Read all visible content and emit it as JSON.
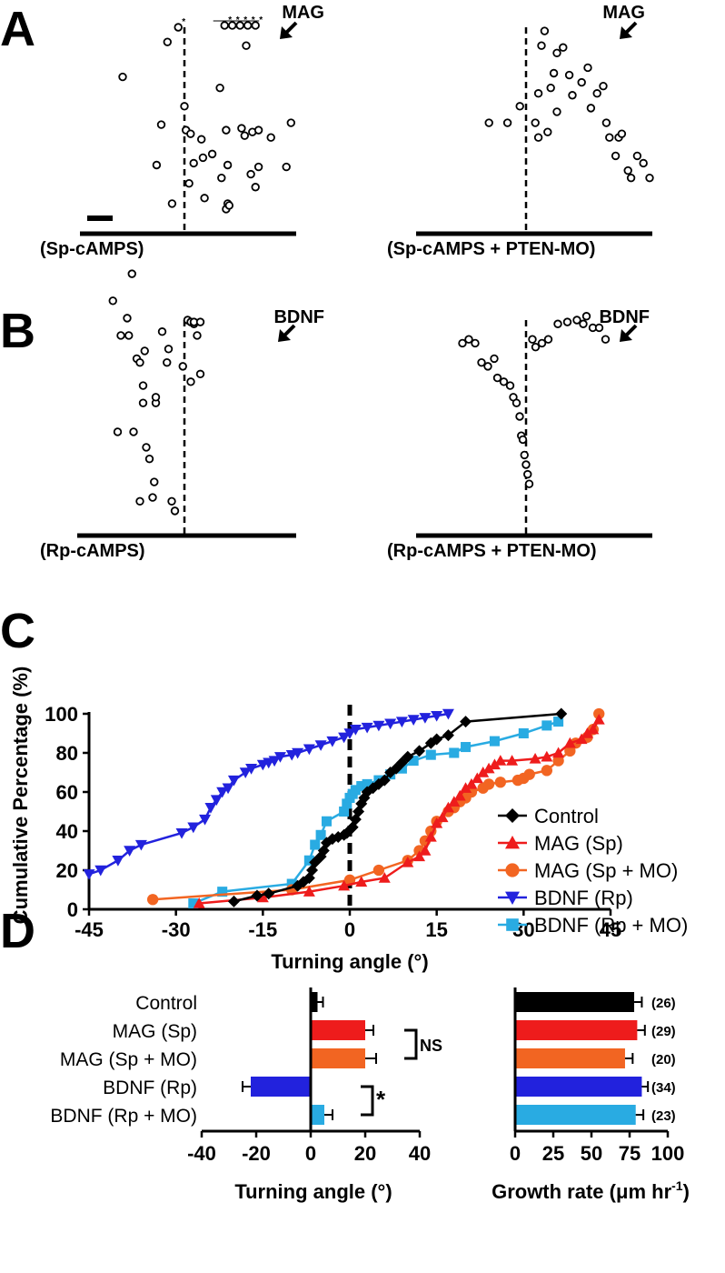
{
  "panel_letters": [
    "A",
    "B",
    "C",
    "D"
  ],
  "colors": {
    "control": "#000000",
    "mag_sp": "#ee1c1c",
    "mag_sp_mo": "#f26522",
    "bdnf_rp": "#2222dd",
    "bdnf_rp_mo": "#29abe2"
  },
  "chart_data": [
    {
      "id": "A-left",
      "type": "scatter",
      "panel": "A",
      "condition_label": "(Sp-cAMPS)",
      "cue_label": "MAG",
      "arrow_icon": "arrow-down-left-icon",
      "star_marker": "*",
      "points": [
        [
          -40,
          73
        ],
        [
          -11,
          92
        ],
        [
          -18,
          25
        ],
        [
          -15,
          47
        ],
        [
          -8,
          4
        ],
        [
          0,
          57
        ],
        [
          1,
          44
        ],
        [
          4,
          42
        ],
        [
          3,
          15
        ],
        [
          6,
          26
        ],
        [
          11,
          39
        ],
        [
          12,
          29
        ],
        [
          13,
          7
        ],
        [
          18,
          31
        ],
        [
          23,
          67
        ],
        [
          24,
          18
        ],
        [
          27,
          1
        ],
        [
          27,
          44
        ],
        [
          28,
          25
        ],
        [
          28,
          4
        ],
        [
          29,
          3
        ],
        [
          37,
          45
        ],
        [
          39,
          41
        ],
        [
          40,
          90
        ],
        [
          43,
          20
        ],
        [
          44,
          43
        ],
        [
          46,
          13
        ],
        [
          48,
          44
        ],
        [
          48,
          24
        ],
        [
          56,
          40
        ],
        [
          66,
          24
        ],
        [
          69,
          48
        ]
      ],
      "starred_points": [
        [
          -4,
          100
        ],
        [
          26,
          101
        ],
        [
          31,
          101
        ],
        [
          36,
          101
        ],
        [
          41,
          101
        ],
        [
          46,
          101
        ]
      ],
      "bracket_group": [
        [
          21,
          101
        ],
        [
          26,
          101
        ],
        [
          31,
          101
        ],
        [
          36,
          101
        ],
        [
          41,
          101
        ],
        [
          46,
          101
        ]
      ]
    },
    {
      "id": "A-right",
      "type": "scatter",
      "panel": "A",
      "condition_label": "(Sp-cAMPS + PTEN-MO)",
      "cue_label": "MAG",
      "arrow_icon": "arrow-down-left-icon",
      "points": [
        [
          -24,
          48
        ],
        [
          -12,
          48
        ],
        [
          -4,
          57
        ],
        [
          6,
          48
        ],
        [
          8,
          40
        ],
        [
          8,
          64
        ],
        [
          10,
          90
        ],
        [
          12,
          98
        ],
        [
          14,
          43
        ],
        [
          16,
          67
        ],
        [
          18,
          75
        ],
        [
          20,
          54
        ],
        [
          20,
          86
        ],
        [
          24,
          89
        ],
        [
          28,
          74
        ],
        [
          30,
          63
        ],
        [
          36,
          70
        ],
        [
          40,
          78
        ],
        [
          42,
          56
        ],
        [
          46,
          64
        ],
        [
          50,
          68
        ],
        [
          52,
          48
        ],
        [
          54,
          40
        ],
        [
          58,
          30
        ],
        [
          60,
          40
        ],
        [
          62,
          42
        ],
        [
          66,
          22
        ],
        [
          68,
          18
        ],
        [
          72,
          30
        ],
        [
          76,
          26
        ],
        [
          80,
          18
        ]
      ]
    },
    {
      "id": "B-left",
      "type": "scatter",
      "panel": "B",
      "condition_label": "(Rp-cAMPS)",
      "cue_label": "BDNF",
      "arrow_icon": "arrow-down-left-icon",
      "star_marker": "*",
      "points": [
        [
          -45,
          110
        ],
        [
          -42,
          42
        ],
        [
          -40,
          92
        ],
        [
          -36,
          101
        ],
        [
          -35,
          92
        ],
        [
          -33,
          124
        ],
        [
          -32,
          42
        ],
        [
          -30,
          80
        ],
        [
          -28,
          6
        ],
        [
          -28,
          78
        ],
        [
          -26,
          57
        ],
        [
          -26,
          66
        ],
        [
          -25,
          84
        ],
        [
          -24,
          34
        ],
        [
          -22,
          28
        ],
        [
          -20,
          8
        ],
        [
          -19,
          16
        ],
        [
          -18,
          57
        ],
        [
          -18,
          60
        ],
        [
          -14,
          94
        ],
        [
          -11,
          78
        ],
        [
          -10,
          85
        ],
        [
          -8,
          6
        ],
        [
          -6,
          1
        ],
        [
          -1,
          76
        ],
        [
          2,
          100
        ],
        [
          4,
          68
        ],
        [
          4,
          99
        ],
        [
          6,
          98
        ],
        [
          6,
          99
        ],
        [
          8,
          92
        ],
        [
          10,
          99
        ],
        [
          10,
          72
        ]
      ]
    },
    {
      "id": "B-right",
      "type": "scatter",
      "panel": "B",
      "condition_label": "(Rp-cAMPS + PTEN-MO)",
      "cue_label": "BDNF",
      "arrow_icon": "arrow-down-left-icon",
      "star_marker": "*",
      "points": [
        [
          -40,
          88
        ],
        [
          -36,
          90
        ],
        [
          -32,
          88
        ],
        [
          -28,
          78
        ],
        [
          -24,
          76
        ],
        [
          -20,
          80
        ],
        [
          -18,
          70
        ],
        [
          -14,
          68
        ],
        [
          -10,
          66
        ],
        [
          -8,
          60
        ],
        [
          -6,
          57
        ],
        [
          -4,
          50
        ],
        [
          -3,
          40
        ],
        [
          -2,
          38
        ],
        [
          -1,
          30
        ],
        [
          0,
          25
        ],
        [
          1,
          20
        ],
        [
          2,
          15
        ],
        [
          4,
          90
        ],
        [
          6,
          86
        ],
        [
          10,
          88
        ],
        [
          14,
          90
        ],
        [
          20,
          98
        ],
        [
          26,
          99
        ],
        [
          32,
          100
        ],
        [
          36,
          98
        ],
        [
          38,
          102
        ],
        [
          42,
          96
        ],
        [
          46,
          96
        ],
        [
          50,
          90
        ]
      ]
    },
    {
      "id": "C",
      "type": "line",
      "panel": "C",
      "ylabel": "Cumulative Percentage (%)",
      "xlabel": "Turning angle (°)",
      "xlim": [
        -45,
        45
      ],
      "ylim": [
        0,
        100
      ],
      "xticks": [
        -45,
        -30,
        -15,
        0,
        15,
        30,
        45
      ],
      "yticks": [
        0,
        20,
        40,
        60,
        80,
        100
      ],
      "series": [
        {
          "name": "Control",
          "color": "#000000",
          "marker": "diamond",
          "x": [
            -20,
            -16,
            -14,
            -9,
            -8,
            -7,
            -6.5,
            -6,
            -5,
            -4.5,
            -4,
            -3,
            -2,
            -1,
            -0.5,
            0.5,
            1,
            1.5,
            2,
            2.5,
            3,
            4,
            5,
            6,
            7,
            8,
            9,
            10,
            12,
            14,
            15,
            17,
            20,
            36.5
          ],
          "y": [
            4,
            7,
            8,
            12,
            14,
            16,
            20,
            24,
            27,
            30,
            34,
            36,
            37,
            38,
            39,
            42,
            46,
            50,
            54,
            57,
            60,
            62,
            64,
            66,
            70,
            72,
            75,
            78,
            81,
            85,
            87,
            89,
            96,
            100
          ]
        },
        {
          "name": "MAG (Sp)",
          "color": "#ee1c1c",
          "marker": "triangle-up",
          "x": [
            -26,
            -15,
            -7,
            -1,
            2,
            6,
            10,
            12,
            13,
            14,
            15,
            16,
            17,
            18,
            19,
            20,
            21,
            22,
            23,
            24,
            25,
            26,
            28,
            32,
            34,
            36,
            38,
            40,
            41,
            42,
            43
          ],
          "y": [
            3,
            6,
            9,
            12,
            14,
            16,
            24,
            27,
            30,
            37,
            44,
            47,
            52,
            55,
            58,
            62,
            64,
            67,
            70,
            72,
            74,
            76,
            76,
            77,
            78,
            80,
            85,
            87,
            90,
            92,
            97
          ]
        },
        {
          "name": "MAG (Sp + MO)",
          "color": "#f26522",
          "marker": "circle",
          "x": [
            -34,
            -10,
            0,
            5,
            10,
            12,
            13,
            14,
            15,
            17,
            18,
            19,
            20,
            21,
            23,
            24,
            26,
            29,
            30,
            31,
            34,
            36,
            38,
            39,
            41,
            42,
            43
          ],
          "y": [
            5,
            10,
            15,
            20,
            25,
            30,
            35,
            40,
            45,
            50,
            52,
            55,
            57,
            60,
            62,
            64,
            65,
            66,
            67,
            69,
            71,
            76,
            81,
            85,
            88,
            92,
            100
          ]
        },
        {
          "name": "BDNF (Rp)",
          "color": "#2222dd",
          "marker": "triangle-down",
          "x": [
            -45,
            -43,
            -40,
            -38,
            -36,
            -29,
            -27,
            -25,
            -24,
            -23,
            -22,
            -21,
            -20,
            -18,
            -17,
            -15,
            -14,
            -13,
            -12,
            -10,
            -9,
            -7,
            -5,
            -3,
            -1,
            0,
            1,
            3,
            5,
            7,
            9,
            11,
            13,
            15,
            17
          ],
          "y": [
            18,
            20,
            25,
            30,
            33,
            39,
            42,
            46,
            52,
            56,
            60,
            62,
            66,
            70,
            72,
            74,
            75,
            76,
            78,
            79,
            80,
            82,
            84,
            86,
            88,
            90,
            92,
            93,
            94,
            95,
            96,
            97,
            98,
            99,
            100
          ]
        },
        {
          "name": "BDNF (Rp + MO)",
          "color": "#29abe2",
          "marker": "square",
          "x": [
            -27,
            -22,
            -10,
            -7,
            -6,
            -5,
            -4,
            -1,
            -0.5,
            0,
            0.5,
            1,
            2,
            3,
            5,
            7,
            9,
            11,
            14,
            18,
            20,
            25,
            30,
            34,
            36
          ],
          "y": [
            3,
            9,
            13,
            25,
            33,
            38,
            45,
            50,
            54,
            57,
            59,
            61,
            63,
            64,
            66,
            69,
            72,
            76,
            79,
            80,
            83,
            86,
            90,
            94,
            96
          ]
        }
      ],
      "legend_position": "right"
    },
    {
      "id": "D-left",
      "type": "bar",
      "panel": "D",
      "orientation": "horizontal",
      "categories": [
        "Control",
        "MAG (Sp)",
        "MAG (Sp + MO)",
        "BDNF (Rp)",
        "BDNF (Rp + MO)"
      ],
      "values": [
        2.5,
        20,
        20,
        -22,
        5
      ],
      "errors": [
        2,
        3,
        4,
        3,
        3
      ],
      "colors": [
        "#000000",
        "#ee1c1c",
        "#f26522",
        "#2222dd",
        "#29abe2"
      ],
      "xlabel": "Turning angle (°)",
      "xlim": [
        -40,
        40
      ],
      "xticks": [
        -40,
        -20,
        0,
        20,
        40
      ],
      "annotations": [
        {
          "text": "NS",
          "between": [
            "MAG (Sp)",
            "MAG (Sp + MO)"
          ]
        },
        {
          "text": "*",
          "between": [
            "BDNF (Rp)",
            "BDNF (Rp + MO)"
          ]
        }
      ]
    },
    {
      "id": "D-right",
      "type": "bar",
      "panel": "D",
      "orientation": "horizontal",
      "categories": [
        "Control",
        "MAG (Sp)",
        "MAG (Sp + MO)",
        "BDNF (Rp)",
        "BDNF (Rp + MO)"
      ],
      "values": [
        78,
        80,
        72,
        83,
        79
      ],
      "errors": [
        5,
        5,
        5,
        4,
        5
      ],
      "n_labels": [
        "(26)",
        "(29)",
        "(20)",
        "(34)",
        "(23)"
      ],
      "colors": [
        "#000000",
        "#ee1c1c",
        "#f26522",
        "#2222dd",
        "#29abe2"
      ],
      "xlabel_main": "Growth rate (",
      "xlabel_mu": "μ",
      "xlabel_unit": "m hr",
      "xlabel_sup": "-1",
      "xlabel_close": ")",
      "xlim": [
        0,
        100
      ],
      "xticks": [
        0,
        25,
        50,
        75,
        100
      ]
    }
  ]
}
